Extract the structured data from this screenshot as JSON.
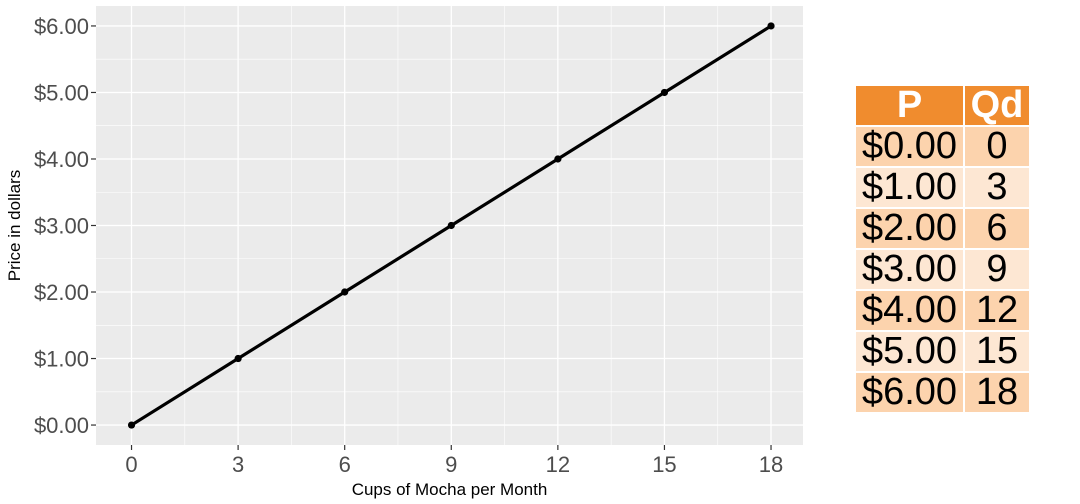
{
  "chart_data": {
    "type": "line",
    "x": [
      0,
      3,
      6,
      9,
      12,
      15,
      18
    ],
    "y": [
      0,
      1,
      2,
      3,
      4,
      5,
      6
    ],
    "xlabel": "Cups of Mocha per Month",
    "ylabel": "Price in dollars",
    "xlim": [
      -1,
      18.9
    ],
    "ylim": [
      -0.3,
      6.3
    ],
    "x_ticks": [
      0,
      3,
      6,
      9,
      12,
      15,
      18
    ],
    "x_tick_labels": [
      "0",
      "3",
      "6",
      "9",
      "12",
      "15",
      "18"
    ],
    "y_ticks": [
      0,
      1,
      2,
      3,
      4,
      5,
      6
    ],
    "y_tick_labels": [
      "$0.00",
      "$1.00",
      "$2.00",
      "$3.00",
      "$4.00",
      "$5.00",
      "$6.00"
    ],
    "grid": true,
    "panel_background": "#ebebeb",
    "line_color": "#000000"
  },
  "table": {
    "headers": [
      "P",
      "Qd"
    ],
    "rows": [
      [
        "$0.00",
        "0"
      ],
      [
        "$1.00",
        "3"
      ],
      [
        "$2.00",
        "6"
      ],
      [
        "$3.00",
        "9"
      ],
      [
        "$4.00",
        "12"
      ],
      [
        "$5.00",
        "15"
      ],
      [
        "$6.00",
        "18"
      ]
    ],
    "header_color": "#f08c2e",
    "row_colors": [
      "#fcd3ad",
      "#fde7d3"
    ]
  }
}
